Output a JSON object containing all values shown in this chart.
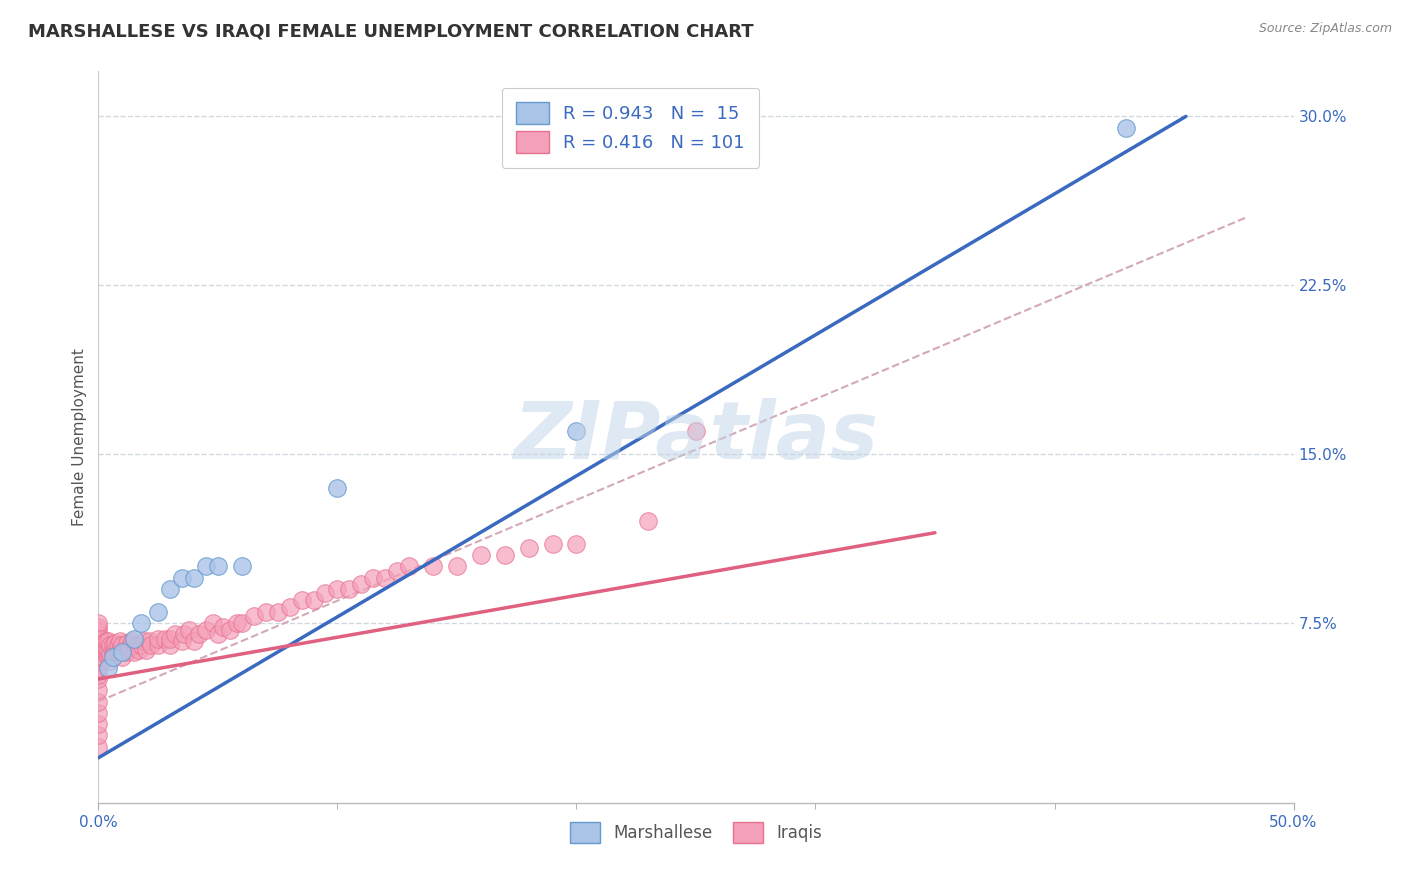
{
  "title": "MARSHALLESE VS IRAQI FEMALE UNEMPLOYMENT CORRELATION CHART",
  "source_text": "Source: ZipAtlas.com",
  "ylabel": "Female Unemployment",
  "xlim": [
    0.0,
    0.5
  ],
  "ylim": [
    -0.005,
    0.32
  ],
  "xtick_positions": [
    0.0,
    0.5
  ],
  "xticklabels": [
    "0.0%",
    "50.0%"
  ],
  "yticks_right": [
    0.075,
    0.15,
    0.225,
    0.3
  ],
  "ytick_right_labels": [
    "7.5%",
    "15.0%",
    "22.5%",
    "30.0%"
  ],
  "marshallese_color": "#aac4e8",
  "iraqi_color": "#f4a0b8",
  "marshallese_edge": "#6699cc",
  "iraqi_edge": "#e87090",
  "blue_line_color": "#3a6abf",
  "pink_line_color": "#e06080",
  "dashed_line_color": "#d0a0b0",
  "legend_R_marshallese": "0.943",
  "legend_N_marshallese": "15",
  "legend_R_iraqi": "0.416",
  "legend_N_iraqi": "101",
  "watermark": "ZIPatlas",
  "watermark_color": "#c0d4e8",
  "background_color": "#ffffff",
  "grid_color": "#d0d8e0",
  "title_fontsize": 13,
  "axis_label_fontsize": 11,
  "tick_fontsize": 11,
  "blue_line_x0": 0.0,
  "blue_line_y0": 0.015,
  "blue_line_x1": 0.455,
  "blue_line_y1": 0.3,
  "pink_line_x0": 0.0,
  "pink_line_y0": 0.05,
  "pink_line_x1": 0.35,
  "pink_line_y1": 0.115,
  "dash_line_x0": 0.0,
  "dash_line_y0": 0.04,
  "dash_line_x1": 0.48,
  "dash_line_y1": 0.255,
  "marshallese_x": [
    0.004,
    0.006,
    0.01,
    0.015,
    0.018,
    0.025,
    0.03,
    0.035,
    0.04,
    0.045,
    0.05,
    0.06,
    0.1,
    0.2,
    0.43
  ],
  "marshallese_y": [
    0.055,
    0.06,
    0.062,
    0.068,
    0.075,
    0.08,
    0.09,
    0.095,
    0.095,
    0.1,
    0.1,
    0.1,
    0.135,
    0.16,
    0.295
  ],
  "iraqi_x": [
    0.0,
    0.0,
    0.0,
    0.0,
    0.0,
    0.0,
    0.0,
    0.0,
    0.0,
    0.0,
    0.0,
    0.0,
    0.0,
    0.0,
    0.0,
    0.0,
    0.0,
    0.0,
    0.0,
    0.0,
    0.001,
    0.001,
    0.001,
    0.001,
    0.001,
    0.002,
    0.002,
    0.002,
    0.003,
    0.003,
    0.003,
    0.004,
    0.004,
    0.004,
    0.005,
    0.005,
    0.005,
    0.006,
    0.006,
    0.007,
    0.007,
    0.008,
    0.008,
    0.009,
    0.009,
    0.01,
    0.01,
    0.011,
    0.012,
    0.012,
    0.013,
    0.014,
    0.015,
    0.016,
    0.017,
    0.018,
    0.019,
    0.02,
    0.021,
    0.022,
    0.025,
    0.025,
    0.028,
    0.03,
    0.03,
    0.032,
    0.035,
    0.036,
    0.038,
    0.04,
    0.042,
    0.045,
    0.048,
    0.05,
    0.052,
    0.055,
    0.058,
    0.06,
    0.065,
    0.07,
    0.075,
    0.08,
    0.085,
    0.09,
    0.095,
    0.1,
    0.105,
    0.11,
    0.115,
    0.12,
    0.125,
    0.13,
    0.14,
    0.15,
    0.16,
    0.17,
    0.18,
    0.19,
    0.2,
    0.23,
    0.25
  ],
  "iraqi_y": [
    0.02,
    0.025,
    0.03,
    0.035,
    0.04,
    0.045,
    0.05,
    0.052,
    0.055,
    0.058,
    0.06,
    0.062,
    0.065,
    0.068,
    0.07,
    0.072,
    0.073,
    0.075,
    0.055,
    0.06,
    0.058,
    0.06,
    0.062,
    0.065,
    0.068,
    0.06,
    0.063,
    0.066,
    0.062,
    0.064,
    0.067,
    0.06,
    0.063,
    0.067,
    0.058,
    0.061,
    0.065,
    0.062,
    0.065,
    0.063,
    0.066,
    0.062,
    0.065,
    0.063,
    0.067,
    0.06,
    0.065,
    0.063,
    0.062,
    0.066,
    0.064,
    0.067,
    0.062,
    0.065,
    0.063,
    0.065,
    0.067,
    0.063,
    0.067,
    0.065,
    0.065,
    0.068,
    0.068,
    0.065,
    0.068,
    0.07,
    0.067,
    0.07,
    0.072,
    0.067,
    0.07,
    0.072,
    0.075,
    0.07,
    0.073,
    0.072,
    0.075,
    0.075,
    0.078,
    0.08,
    0.08,
    0.082,
    0.085,
    0.085,
    0.088,
    0.09,
    0.09,
    0.092,
    0.095,
    0.095,
    0.098,
    0.1,
    0.1,
    0.1,
    0.105,
    0.105,
    0.108,
    0.11,
    0.11,
    0.12,
    0.16
  ]
}
